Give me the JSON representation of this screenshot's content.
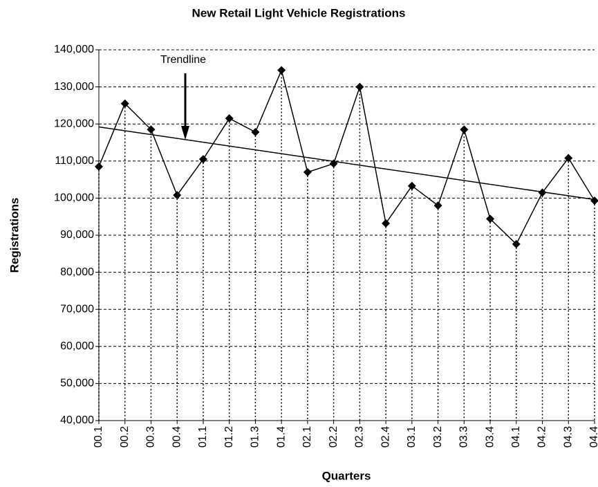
{
  "chart_data": {
    "type": "line",
    "title": "New Retail Light Vehicle Registrations",
    "x_label": "Quarters",
    "y_label": "Registrations",
    "categories": [
      "00.1",
      "00.2",
      "00.3",
      "00.4",
      "01.1",
      "01.2",
      "01.3",
      "01.4",
      "02.1",
      "02.2",
      "02.3",
      "02.4",
      "03.1",
      "03.2",
      "03.3",
      "03.4",
      "04.1",
      "04.2",
      "04.3",
      "04.4"
    ],
    "values": [
      108500,
      125500,
      118500,
      100800,
      110500,
      121500,
      117800,
      134500,
      107000,
      109300,
      130000,
      93200,
      103300,
      98000,
      118500,
      94400,
      87600,
      101500,
      110800,
      99300
    ],
    "color": "#000000",
    "trendline": {
      "label": "Trendline",
      "values": [
        119200,
        99600
      ]
    },
    "ylim": [
      40000,
      140000
    ],
    "yticks": [
      {
        "value": 40000,
        "label": "40,000"
      },
      {
        "value": 50000,
        "label": "50,000"
      },
      {
        "value": 60000,
        "label": "60,000"
      },
      {
        "value": 70000,
        "label": "70,000"
      },
      {
        "value": 80000,
        "label": "80,000"
      },
      {
        "value": 90000,
        "label": "90,000"
      },
      {
        "value": 100000,
        "label": "100,000"
      },
      {
        "value": 110000,
        "label": "110,000"
      },
      {
        "value": 120000,
        "label": "120,000"
      },
      {
        "value": 130000,
        "label": "130,000"
      },
      {
        "value": 140000,
        "label": "140,000"
      }
    ],
    "grid": true
  }
}
